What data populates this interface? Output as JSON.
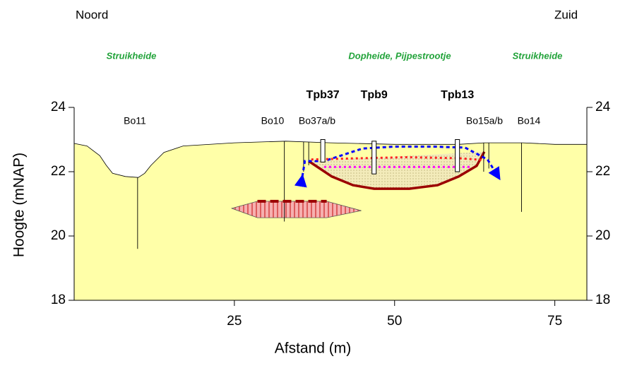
{
  "chart_data": {
    "type": "cross-section",
    "corner_labels": [
      "Noord",
      "Zuid"
    ],
    "vegetation": [
      "Struikheide",
      "Dopheide, Pijpestrootje",
      "Struikheide"
    ],
    "xlabel": "Afstand (m)",
    "ylabel": "Hoogte (mNAP)",
    "xlim": [
      0,
      80
    ],
    "xticks": [
      25,
      50,
      75
    ],
    "ylim": [
      18,
      24
    ],
    "yticks": [
      18,
      20,
      22,
      24
    ],
    "y2lim": [
      18,
      24
    ],
    "y2ticks": [
      18,
      20,
      22,
      24
    ],
    "surface": {
      "color": "#ffffa8",
      "x": [
        0,
        2,
        4,
        5,
        6,
        8,
        10,
        11,
        12,
        14,
        17,
        25,
        33,
        40,
        50,
        60,
        64,
        70,
        75,
        80
      ],
      "values": [
        22.88,
        22.8,
        22.5,
        22.2,
        21.95,
        21.85,
        21.82,
        21.95,
        22.2,
        22.6,
        22.8,
        22.9,
        22.95,
        22.9,
        22.85,
        22.85,
        22.9,
        22.9,
        22.85,
        22.85
      ]
    },
    "boreholes": [
      {
        "label": "Bo11",
        "x": [
          9.9
        ],
        "bottom": [
          19.6
        ]
      },
      {
        "label": "Bo10",
        "x": [
          32.8
        ],
        "bottom": [
          20.45
        ]
      },
      {
        "label": "Bo37a/b",
        "x": [
          35.8,
          36.6
        ],
        "bottom": [
          22.0,
          22.2
        ]
      },
      {
        "label": "Bo15a/b",
        "x": [
          63.9,
          64.7
        ],
        "bottom": [
          22.0,
          22.1
        ]
      },
      {
        "label": "Bo14",
        "x": [
          69.8
        ],
        "bottom": [
          20.75
        ]
      }
    ],
    "piezometers": [
      {
        "label": "Tpb37",
        "x": 38.8,
        "top": 23.0,
        "bottom": 22.3
      },
      {
        "label": "Tpb9",
        "x": 46.8,
        "top": 22.95,
        "bottom": 21.93
      },
      {
        "label": "Tpb13",
        "x": 59.8,
        "top": 23.0,
        "bottom": 22.0
      }
    ],
    "lens": {
      "color": "#e53030",
      "x": [
        24.6,
        28.6,
        39.4,
        44.8,
        39.4,
        28.6
      ],
      "values": [
        20.86,
        21.08,
        21.08,
        20.79,
        20.57,
        20.57
      ]
    },
    "basin": {
      "color": "#9b0000",
      "x": [
        36.6,
        40.2,
        43.5,
        46.8,
        52.3,
        56.7,
        60,
        62.8,
        64
      ],
      "values": [
        22.33,
        21.85,
        21.58,
        21.47,
        21.47,
        21.58,
        21.85,
        22.18,
        22.62
      ]
    },
    "series": [
      {
        "color": "#0000ff",
        "x": [
          35.6,
          36,
          39,
          45,
          50,
          56,
          61,
          64.5,
          66.3
        ],
        "values": [
          21.85,
          22.33,
          22.33,
          22.72,
          22.78,
          22.78,
          22.75,
          22.38,
          21.8
        ]
      },
      {
        "color": "#ff2020",
        "x": [
          37,
          45,
          52,
          60,
          64
        ],
        "values": [
          22.38,
          22.42,
          22.45,
          22.42,
          22.36
        ]
      },
      {
        "color": "#ff00ff",
        "x": [
          39,
          45,
          52,
          58,
          62
        ],
        "values": [
          22.15,
          22.15,
          22.15,
          22.15,
          22.15
        ]
      },
      {
        "color": "#9b0000",
        "x": [
          28.6,
          39.4
        ],
        "values": [
          21.08,
          21.08
        ]
      }
    ]
  }
}
